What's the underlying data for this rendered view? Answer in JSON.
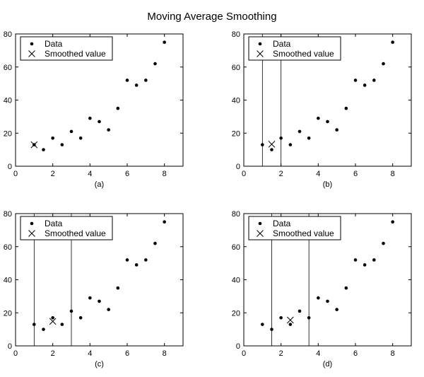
{
  "figure": {
    "title": "Moving Average Smoothing"
  },
  "chart_data": [
    {
      "type": "scatter",
      "panel_label": "(a)",
      "xlim": [
        0,
        9
      ],
      "ylim": [
        0,
        80
      ],
      "xticks": [
        0,
        2,
        4,
        6,
        8
      ],
      "yticks": [
        0,
        20,
        40,
        60,
        80
      ],
      "grid": false,
      "legend": {
        "position": "top-left",
        "entries": [
          "Data",
          "Smoothed value"
        ]
      },
      "series": [
        {
          "name": "Data",
          "marker": "dot",
          "x": [
            1,
            1.5,
            2,
            2.5,
            3,
            3.5,
            4,
            4.5,
            5,
            5.5,
            6,
            6.5,
            7,
            7.5,
            8
          ],
          "y": [
            13,
            10,
            17,
            13,
            21,
            17,
            29,
            27,
            22,
            35,
            52,
            49,
            52,
            62,
            75
          ]
        },
        {
          "name": "Smoothed value",
          "marker": "x",
          "x": [
            1
          ],
          "y": [
            13
          ]
        }
      ],
      "window": []
    },
    {
      "type": "scatter",
      "panel_label": "(b)",
      "xlim": [
        0,
        9
      ],
      "ylim": [
        0,
        80
      ],
      "xticks": [
        0,
        2,
        4,
        6,
        8
      ],
      "yticks": [
        0,
        20,
        40,
        60,
        80
      ],
      "grid": false,
      "legend": {
        "position": "top-left",
        "entries": [
          "Data",
          "Smoothed value"
        ]
      },
      "series": [
        {
          "name": "Data",
          "marker": "dot",
          "x": [
            1,
            1.5,
            2,
            2.5,
            3,
            3.5,
            4,
            4.5,
            5,
            5.5,
            6,
            6.5,
            7,
            7.5,
            8
          ],
          "y": [
            13,
            10,
            17,
            13,
            21,
            17,
            29,
            27,
            22,
            35,
            52,
            49,
            52,
            62,
            75
          ]
        },
        {
          "name": "Smoothed value",
          "marker": "x",
          "x": [
            1.5
          ],
          "y": [
            13.3
          ]
        }
      ],
      "window": [
        1,
        2
      ]
    },
    {
      "type": "scatter",
      "panel_label": "(c)",
      "xlim": [
        0,
        9
      ],
      "ylim": [
        0,
        80
      ],
      "xticks": [
        0,
        2,
        4,
        6,
        8
      ],
      "yticks": [
        0,
        20,
        40,
        60,
        80
      ],
      "grid": false,
      "legend": {
        "position": "top-left",
        "entries": [
          "Data",
          "Smoothed value"
        ]
      },
      "series": [
        {
          "name": "Data",
          "marker": "dot",
          "x": [
            1,
            1.5,
            2,
            2.5,
            3,
            3.5,
            4,
            4.5,
            5,
            5.5,
            6,
            6.5,
            7,
            7.5,
            8
          ],
          "y": [
            13,
            10,
            17,
            13,
            21,
            17,
            29,
            27,
            22,
            35,
            52,
            49,
            52,
            62,
            75
          ]
        },
        {
          "name": "Smoothed value",
          "marker": "x",
          "x": [
            2
          ],
          "y": [
            14.8
          ]
        }
      ],
      "window": [
        1,
        3
      ]
    },
    {
      "type": "scatter",
      "panel_label": "(d)",
      "xlim": [
        0,
        9
      ],
      "ylim": [
        0,
        80
      ],
      "xticks": [
        0,
        2,
        4,
        6,
        8
      ],
      "yticks": [
        0,
        20,
        40,
        60,
        80
      ],
      "grid": false,
      "legend": {
        "position": "top-left",
        "entries": [
          "Data",
          "Smoothed value"
        ]
      },
      "series": [
        {
          "name": "Data",
          "marker": "dot",
          "x": [
            1,
            1.5,
            2,
            2.5,
            3,
            3.5,
            4,
            4.5,
            5,
            5.5,
            6,
            6.5,
            7,
            7.5,
            8
          ],
          "y": [
            13,
            10,
            17,
            13,
            21,
            17,
            29,
            27,
            22,
            35,
            52,
            49,
            52,
            62,
            75
          ]
        },
        {
          "name": "Smoothed value",
          "marker": "x",
          "x": [
            2.5
          ],
          "y": [
            15.6
          ]
        }
      ],
      "window": [
        1.5,
        3.5
      ]
    }
  ]
}
